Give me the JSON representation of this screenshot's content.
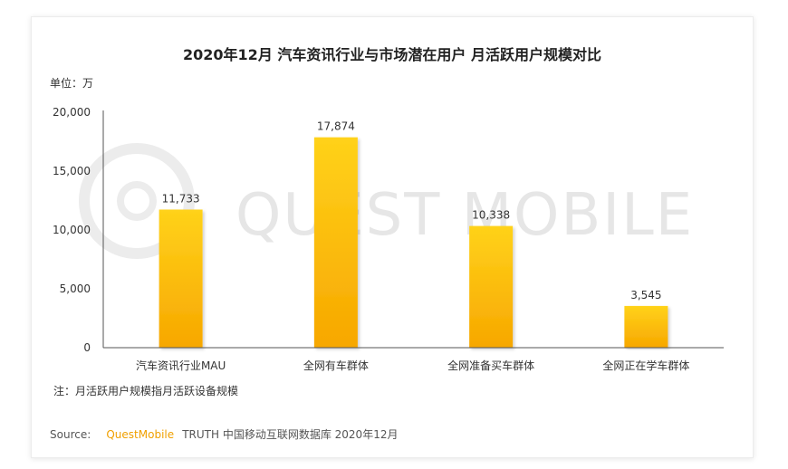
{
  "watermark": "QUEST MOBILE",
  "unit_label": "单位：万",
  "note": "注：月活跃用户规模指月活跃设备规模",
  "source": {
    "prefix": "Source:",
    "brand": "QuestMobile",
    "rest": "TRUTH 中国移动互联网数据库 2020年12月"
  },
  "colors": {
    "bar_top": "#ffd21a",
    "bar_bottom": "#f7a700",
    "brand": "#f0a000"
  },
  "chart_data": {
    "type": "bar",
    "title": "2020年12月 汽车资讯行业与市场潜在用户 月活跃用户规模对比",
    "categories": [
      "汽车资讯行业MAU",
      "全网有车群体",
      "全网准备买车群体",
      "全网正在学车群体"
    ],
    "values": [
      11733,
      17874,
      10338,
      3545
    ],
    "value_labels": [
      "11,733",
      "17,874",
      "10,338",
      "3,545"
    ],
    "yticks": [
      0,
      5000,
      10000,
      15000,
      20000
    ],
    "ytick_labels": [
      "0",
      "5,000",
      "10,000",
      "15,000",
      "20,000"
    ],
    "ylim": [
      0,
      20000
    ],
    "xlabel": "",
    "ylabel": "",
    "grid": false,
    "legend": "none"
  }
}
